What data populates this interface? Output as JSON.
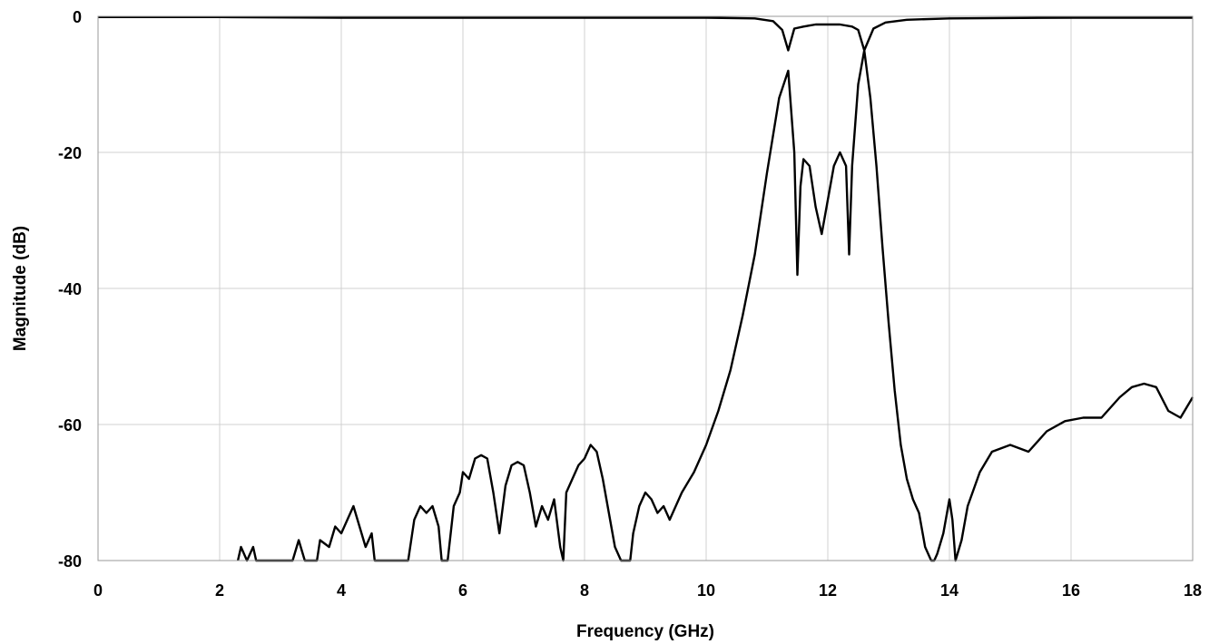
{
  "chart_data": {
    "type": "line",
    "title": "",
    "xlabel": "Frequency (GHz)",
    "ylabel": "Magnitude (dB)",
    "xlim": [
      0,
      18
    ],
    "ylim": [
      -80,
      0
    ],
    "x_ticks": [
      0,
      2,
      4,
      6,
      8,
      10,
      12,
      14,
      16,
      18
    ],
    "y_ticks": [
      0,
      -20,
      -40,
      -60,
      -80
    ],
    "grid": true,
    "legend": "none",
    "line_color": "#000000",
    "series": [
      {
        "x": [
          0,
          2,
          4,
          6,
          8,
          10,
          10.8,
          11.1,
          11.25,
          11.35,
          11.45,
          11.6,
          11.8,
          12.0,
          12.2,
          12.4,
          12.5,
          12.6,
          12.75,
          12.95,
          13.3,
          14,
          16,
          18
        ],
        "y": [
          -0.1,
          -0.1,
          -0.2,
          -0.2,
          -0.2,
          -0.2,
          -0.3,
          -0.7,
          -2,
          -5,
          -1.8,
          -1.5,
          -1.2,
          -1.2,
          -1.2,
          -1.5,
          -2,
          -5,
          -1.8,
          -0.9,
          -0.5,
          -0.3,
          -0.2,
          -0.2
        ]
      },
      {
        "x": [
          2.3,
          2.35,
          2.45,
          2.55,
          2.6,
          3.2,
          3.3,
          3.4,
          3.6,
          3.65,
          3.8,
          3.9,
          4.0,
          4.1,
          4.2,
          4.3,
          4.4,
          4.5,
          4.55,
          4.6,
          5.1,
          5.2,
          5.3,
          5.4,
          5.5,
          5.6,
          5.65,
          5.75,
          5.85,
          5.95,
          6.0,
          6.1,
          6.2,
          6.3,
          6.4,
          6.5,
          6.6,
          6.7,
          6.8,
          6.9,
          7.0,
          7.1,
          7.2,
          7.3,
          7.4,
          7.5,
          7.6,
          7.65,
          7.7,
          7.8,
          7.9,
          8.0,
          8.1,
          8.2,
          8.3,
          8.4,
          8.5,
          8.6,
          8.7,
          8.75,
          8.8,
          8.9,
          9.0,
          9.1,
          9.2,
          9.3,
          9.4,
          9.5,
          9.6,
          9.8,
          10.0,
          10.2,
          10.4,
          10.6,
          10.8,
          11.0,
          11.2,
          11.35,
          11.45,
          11.5,
          11.55,
          11.6,
          11.7,
          11.8,
          11.9,
          12.0,
          12.1,
          12.2,
          12.3,
          12.35,
          12.4,
          12.5,
          12.6,
          12.7,
          12.8,
          12.9,
          13.0,
          13.1,
          13.2,
          13.3,
          13.4,
          13.5,
          13.6,
          13.7,
          13.75,
          13.8,
          13.9,
          14.0,
          14.05,
          14.1,
          14.2,
          14.3,
          14.5,
          14.7,
          15.0,
          15.3,
          15.6,
          15.9,
          16.2,
          16.5,
          16.8,
          17.0,
          17.2,
          17.4,
          17.6,
          17.8,
          18.0
        ],
        "y": [
          -80,
          -78,
          -80,
          -78,
          -80,
          -80,
          -77,
          -80,
          -80,
          -77,
          -78,
          -75,
          -76,
          -74,
          -72,
          -75,
          -78,
          -76,
          -80,
          -80,
          -80,
          -74,
          -72,
          -73,
          -72,
          -75,
          -80,
          -80,
          -72,
          -70,
          -67,
          -68,
          -65,
          -64.5,
          -65,
          -70,
          -76,
          -69,
          -66,
          -65.5,
          -66,
          -70,
          -75,
          -72,
          -74,
          -71,
          -78,
          -80,
          -70,
          -68,
          -66,
          -65,
          -63,
          -64,
          -68,
          -73,
          -78,
          -80,
          -80,
          -80,
          -76,
          -72,
          -70,
          -71,
          -73,
          -72,
          -74,
          -72,
          -70,
          -67,
          -63,
          -58,
          -52,
          -44,
          -35,
          -23,
          -12,
          -8,
          -20,
          -38,
          -25,
          -21,
          -22,
          -28,
          -32,
          -27,
          -22,
          -20,
          -22,
          -35,
          -22,
          -10,
          -5,
          -12,
          -22,
          -34,
          -45,
          -55,
          -63,
          -68,
          -71,
          -73,
          -78,
          -80,
          -80,
          -79,
          -76,
          -71,
          -74,
          -80,
          -77,
          -72,
          -67,
          -64,
          -63,
          -64,
          -61,
          -59.5,
          -59,
          -59,
          -56,
          -54.5,
          -54,
          -54.5,
          -58,
          -59,
          -56
        ]
      }
    ]
  }
}
